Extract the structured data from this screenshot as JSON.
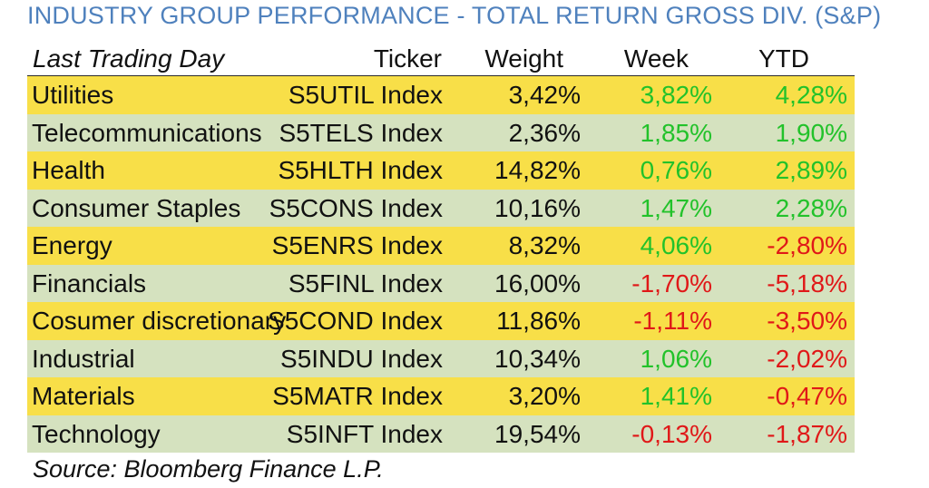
{
  "title": "INDUSTRY GROUP PERFORMANCE - TOTAL RETURN GROSS DIV. (S&P)",
  "colors": {
    "title": "#4f81bd",
    "row_yellow": "#f8df48",
    "row_green": "#d5e2bf",
    "positive": "#22c22a",
    "negative": "#e01818"
  },
  "header": {
    "label": "Last Trading Day",
    "ticker": "Ticker",
    "weight": "Weight",
    "week": "Week",
    "ytd": "YTD"
  },
  "rows": [
    {
      "name": "Utilities",
      "ticker": "S5UTIL Index",
      "weight": "3,42%",
      "week": "3,82%",
      "ytd": "4,28%"
    },
    {
      "name": "Telecommunications",
      "ticker": "S5TELS Index",
      "weight": "2,36%",
      "week": "1,85%",
      "ytd": "1,90%"
    },
    {
      "name": "Health",
      "ticker": "S5HLTH Index",
      "weight": "14,82%",
      "week": "0,76%",
      "ytd": "2,89%"
    },
    {
      "name": "Consumer Staples",
      "ticker": "S5CONS Index",
      "weight": "10,16%",
      "week": "1,47%",
      "ytd": "2,28%"
    },
    {
      "name": "Energy",
      "ticker": "S5ENRS Index",
      "weight": "8,32%",
      "week": "4,06%",
      "ytd": "-2,80%"
    },
    {
      "name": "Financials",
      "ticker": "S5FINL Index",
      "weight": "16,00%",
      "week": "-1,70%",
      "ytd": "-5,18%"
    },
    {
      "name": "Cosumer discretionary",
      "ticker": "S5COND Index",
      "weight": "11,86%",
      "week": "-1,11%",
      "ytd": "-3,50%"
    },
    {
      "name": "Industrial",
      "ticker": "S5INDU Index",
      "weight": "10,34%",
      "week": "1,06%",
      "ytd": "-2,02%"
    },
    {
      "name": "Materials",
      "ticker": "S5MATR Index",
      "weight": "3,20%",
      "week": "1,41%",
      "ytd": "-0,47%"
    },
    {
      "name": "Technology",
      "ticker": "S5INFT Index",
      "weight": "19,54%",
      "week": "-0,13%",
      "ytd": "-1,87%"
    }
  ],
  "source": "Source: Bloomberg Finance L.P."
}
